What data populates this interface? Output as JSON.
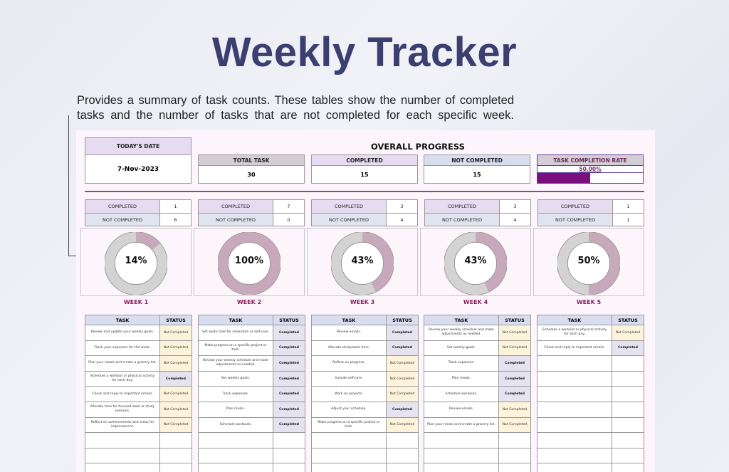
{
  "title": "Weekly Tracker",
  "description": "Provides a summary of task counts. These tables show the number of completed tasks and the number of tasks that are not completed for each specific week.",
  "header": {
    "todays_date_label": "TODAY'S DATE",
    "todays_date": "7-Nov-2023",
    "overall_progress_label": "OVERALL PROGRESS",
    "total_task_label": "TOTAL TASK",
    "total_task": "30",
    "completed_label": "COMPLETED",
    "completed": "15",
    "not_completed_label": "NOT COMPLETED",
    "not_completed": "15",
    "rate_label": "TASK COMPLETION RATE",
    "rate": "50.00%",
    "rate_value": 50
  },
  "colors": {
    "title": "#3a3f70",
    "rate_bar": "#7c0f80",
    "donut_completed": "#c8a9bc",
    "donut_remaining": "#d3d3d3",
    "week_label": "#8a1f5c",
    "completed_cell": "#e4e3ef",
    "not_completed_cell": "#fdf3da"
  },
  "labels": {
    "completed": "COMPLETED",
    "not_completed": "NOT COMPLETED",
    "task_col": "TASK",
    "status_col": "STATUS"
  },
  "weeks": [
    {
      "label": "WEEK 1",
      "completed": "1",
      "not_completed": "6",
      "pct_label": "14%",
      "pct": 14,
      "tasks": [
        {
          "task": "Review and update your weekly goals.",
          "status": "Not Completed"
        },
        {
          "task": "Track your expenses for the week.",
          "status": "Not Completed"
        },
        {
          "task": "Plan your meals and create a grocery list.",
          "status": "Not Completed"
        },
        {
          "task": "Schedule a workout or physical activity for each day.",
          "status": "Completed"
        },
        {
          "task": "Check and reply to important emails.",
          "status": "Not Completed"
        },
        {
          "task": "Allocate time for focused work or study sessions.",
          "status": "Not Completed"
        },
        {
          "task": "Reflect on achievements and areas for improvement.",
          "status": "Not Completed"
        }
      ]
    },
    {
      "label": "WEEK 2",
      "completed": "7",
      "not_completed": "0",
      "pct_label": "100%",
      "pct": 100,
      "tasks": [
        {
          "task": "Set aside time for relaxation or self-care.",
          "status": "Completed"
        },
        {
          "task": "Make progress on a specific project or task.",
          "status": "Completed"
        },
        {
          "task": "Review your weekly schedule and make adjustments as needed.",
          "status": "Completed"
        },
        {
          "task": "Set weekly goals.",
          "status": "Completed"
        },
        {
          "task": "Track expenses.",
          "status": "Completed"
        },
        {
          "task": "Plan meals.",
          "status": "Completed"
        },
        {
          "task": "Schedule workouts.",
          "status": "Completed"
        }
      ]
    },
    {
      "label": "WEEK 3",
      "completed": "3",
      "not_completed": "4",
      "pct_label": "43%",
      "pct": 43,
      "tasks": [
        {
          "task": "Review emails.",
          "status": "Completed"
        },
        {
          "task": "Allocate study/work time.",
          "status": "Completed"
        },
        {
          "task": "Reflect on progress.",
          "status": "Not Completed"
        },
        {
          "task": "Include self-care.",
          "status": "Not Completed"
        },
        {
          "task": "Work on projects.",
          "status": "Not Completed"
        },
        {
          "task": "Adjust your schedule.",
          "status": "Completed"
        },
        {
          "task": "Make progress on a specific project or task.",
          "status": "Not Completed"
        }
      ]
    },
    {
      "label": "WEEK 4",
      "completed": "3",
      "not_completed": "4",
      "pct_label": "43%",
      "pct": 43,
      "tasks": [
        {
          "task": "Review your weekly schedule and make adjustments as needed.",
          "status": "Not Completed"
        },
        {
          "task": "Set weekly goals.",
          "status": "Not Completed"
        },
        {
          "task": "Track expenses.",
          "status": "Completed"
        },
        {
          "task": "Plan meals.",
          "status": "Completed"
        },
        {
          "task": "Schedule workouts.",
          "status": "Completed"
        },
        {
          "task": "Review emails.",
          "status": "Not Completed"
        },
        {
          "task": "Plan your meals and create a grocery list.",
          "status": "Not Completed"
        }
      ]
    },
    {
      "label": "WEEK 5",
      "completed": "1",
      "not_completed": "1",
      "pct_label": "50%",
      "pct": 50,
      "tasks": [
        {
          "task": "Schedule a workout or physical activity for each day.",
          "status": "Not Completed"
        },
        {
          "task": "Check and reply to important emails.",
          "status": "Completed"
        },
        {
          "task": "",
          "status": ""
        },
        {
          "task": "",
          "status": ""
        },
        {
          "task": "",
          "status": ""
        },
        {
          "task": "",
          "status": ""
        },
        {
          "task": "",
          "status": ""
        }
      ]
    }
  ]
}
